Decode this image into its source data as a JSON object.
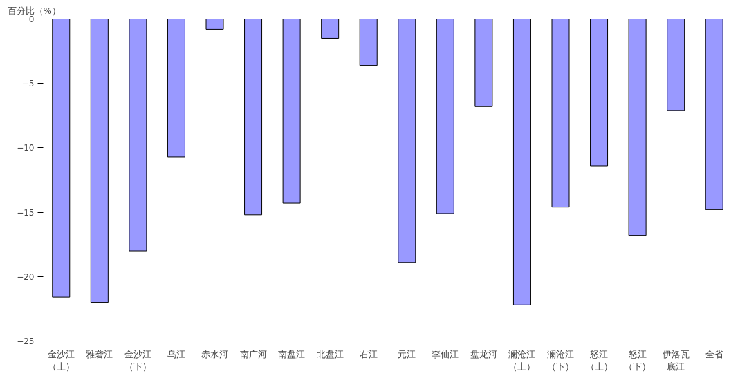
{
  "chart_data": {
    "type": "bar",
    "ylabel": "百分比（%）",
    "categories": [
      "金沙江（上）",
      "雅砻江",
      "金沙江（下）",
      "乌江",
      "赤水河",
      "南广河",
      "南盘江",
      "北盘江",
      "右江",
      "元江",
      "李仙江",
      "盘龙河",
      "澜沧江（上）",
      "澜沧江（下）",
      "怒江（上）",
      "怒江（下）",
      "伊洛瓦底江",
      "全省"
    ],
    "values": [
      -21.6,
      -22.0,
      -18.0,
      -10.7,
      -0.8,
      -15.2,
      -14.3,
      -1.5,
      -3.6,
      -18.9,
      -15.1,
      -6.8,
      -22.2,
      -14.6,
      -11.4,
      -16.8,
      -7.1,
      -14.8
    ],
    "color": "#9999ff",
    "ylim": [
      -25,
      0
    ],
    "yticks": [
      0,
      -5,
      -10,
      -15,
      -20,
      -25
    ],
    "grid": false
  }
}
